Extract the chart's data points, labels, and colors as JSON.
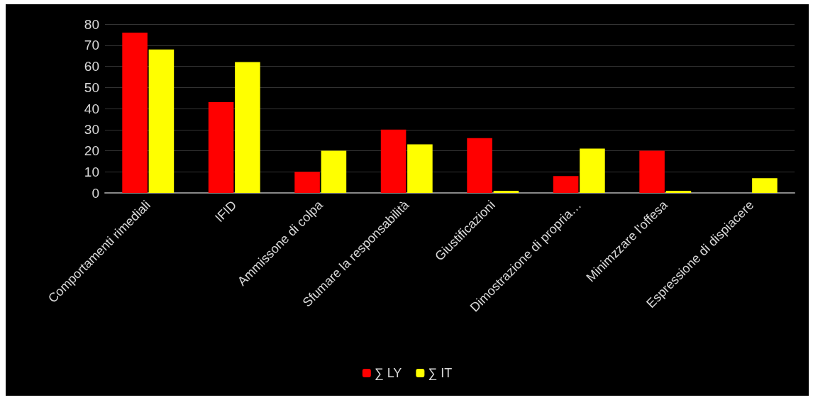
{
  "chart_data": {
    "type": "bar",
    "categories": [
      "Comportamenti rimediali",
      "IFID",
      "Ammissone di colpa",
      "Sfumare la responsabilità",
      "Giustificazioni",
      "Dimostrazione di propria…",
      "Minimzzare l'offesa",
      "Espressione di dispiacere"
    ],
    "series": [
      {
        "name": "∑ LY",
        "color": "#ff0000",
        "values": [
          76,
          43,
          10,
          30,
          26,
          8,
          20,
          0
        ]
      },
      {
        "name": "∑ IT",
        "color": "#ffff00",
        "values": [
          68,
          62,
          20,
          23,
          1,
          21,
          1,
          7
        ]
      }
    ],
    "ylim": [
      0,
      80
    ],
    "yticks": [
      0,
      10,
      20,
      30,
      40,
      50,
      60,
      70,
      80
    ],
    "grid": "y",
    "legend": "bottom"
  }
}
